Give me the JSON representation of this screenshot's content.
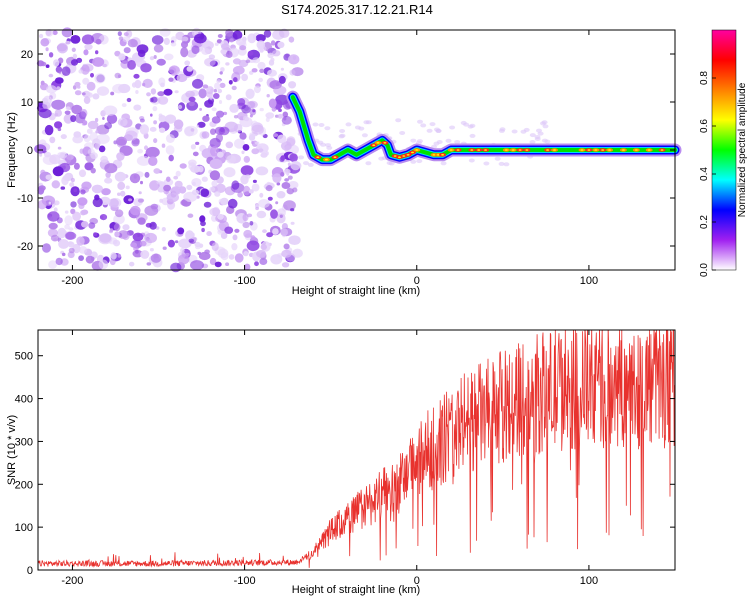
{
  "title": "S174.2025.317.12.21.R14",
  "colors": {
    "snr_line": "#e8322e",
    "axis": "#000000",
    "background": "#ffffff"
  },
  "chart_data": [
    {
      "type": "heatmap",
      "name": "spectrogram",
      "xlabel": "Height of straight line (km)",
      "ylabel": "Frequency (Hz)",
      "xlim": [
        -220,
        150
      ],
      "ylim": [
        -25,
        25
      ],
      "xticks": [
        -200,
        -100,
        0,
        100
      ],
      "yticks": [
        -20,
        -10,
        0,
        10,
        20
      ],
      "colorbar": {
        "label": "Normalized spectral amplitude",
        "range": [
          0,
          1
        ],
        "ticks": [
          "0.0",
          "0.2",
          "0.4",
          "0.6",
          "0.8"
        ],
        "colormap": [
          "#ffffff",
          "#a020f0",
          "#0000ff",
          "#00ffff",
          "#00ff00",
          "#ffff00",
          "#ff8000",
          "#ff0000",
          "#ff00a0"
        ]
      },
      "noise_region_x": [
        -220,
        -68
      ],
      "carrier_trace": [
        {
          "x": -72,
          "y": 11
        },
        {
          "x": -68,
          "y": 8
        },
        {
          "x": -63,
          "y": 2
        },
        {
          "x": -60,
          "y": -1
        },
        {
          "x": -55,
          "y": -2
        },
        {
          "x": -50,
          "y": -2
        },
        {
          "x": -45,
          "y": -1
        },
        {
          "x": -40,
          "y": 0
        },
        {
          "x": -35,
          "y": -1
        },
        {
          "x": -30,
          "y": 0
        },
        {
          "x": -25,
          "y": 1
        },
        {
          "x": -20,
          "y": 2
        },
        {
          "x": -17,
          "y": 1
        },
        {
          "x": -15,
          "y": -1
        },
        {
          "x": -10,
          "y": -1.5
        },
        {
          "x": -5,
          "y": -1
        },
        {
          "x": 0,
          "y": 0
        },
        {
          "x": 5,
          "y": -0.5
        },
        {
          "x": 10,
          "y": -1
        },
        {
          "x": 15,
          "y": -1
        },
        {
          "x": 20,
          "y": 0
        },
        {
          "x": 40,
          "y": 0
        },
        {
          "x": 60,
          "y": 0
        },
        {
          "x": 80,
          "y": 0
        },
        {
          "x": 100,
          "y": 0
        },
        {
          "x": 120,
          "y": 0
        },
        {
          "x": 150,
          "y": 0
        }
      ]
    },
    {
      "type": "line",
      "name": "snr",
      "xlabel": "Height of straight line (km)",
      "ylabel": "SNR (10 * v/v)",
      "xlim": [
        -220,
        150
      ],
      "ylim": [
        0,
        560
      ],
      "xticks": [
        -200,
        -100,
        0,
        100
      ],
      "yticks": [
        0,
        100,
        200,
        300,
        400,
        500
      ],
      "envelope": [
        {
          "x": -220,
          "y": 15
        },
        {
          "x": -150,
          "y": 15
        },
        {
          "x": -70,
          "y": 18
        },
        {
          "x": -60,
          "y": 40
        },
        {
          "x": -50,
          "y": 90
        },
        {
          "x": -40,
          "y": 120
        },
        {
          "x": -30,
          "y": 150
        },
        {
          "x": -20,
          "y": 175
        },
        {
          "x": -10,
          "y": 200
        },
        {
          "x": 0,
          "y": 250
        },
        {
          "x": 10,
          "y": 290
        },
        {
          "x": 20,
          "y": 320
        },
        {
          "x": 30,
          "y": 350
        },
        {
          "x": 50,
          "y": 380
        },
        {
          "x": 60,
          "y": 400
        },
        {
          "x": 80,
          "y": 420
        },
        {
          "x": 100,
          "y": 430
        },
        {
          "x": 120,
          "y": 430
        },
        {
          "x": 150,
          "y": 440
        }
      ]
    }
  ]
}
